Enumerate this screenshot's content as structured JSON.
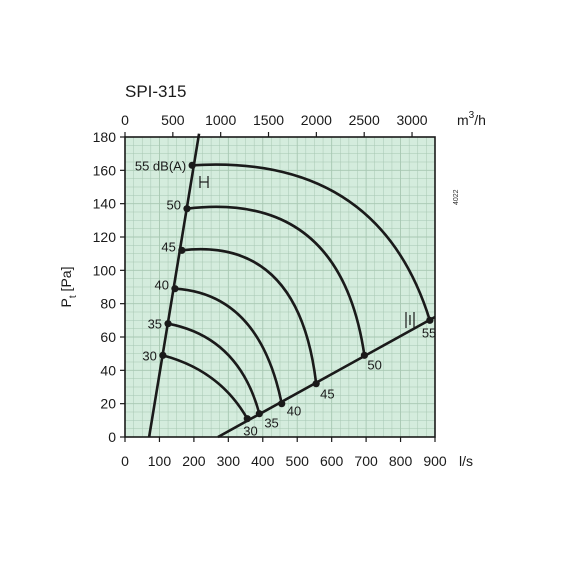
{
  "chart_data": {
    "type": "line",
    "title": "SPI-315",
    "code": "4022",
    "x_label": "l/s",
    "x2_label_main": "m",
    "x2_label_sup": "3",
    "x2_label_tail": "/h",
    "y_label_main": "P",
    "y_label_sub": "t",
    "y_label_tail": " [Pa]",
    "xlim": [
      0,
      900
    ],
    "ylim": [
      0,
      180
    ],
    "x2lim": [
      0,
      3240
    ],
    "x_ticks": [
      0,
      100,
      200,
      300,
      400,
      500,
      600,
      700,
      800,
      900
    ],
    "y_ticks": [
      0,
      20,
      40,
      60,
      80,
      100,
      120,
      140,
      160,
      180
    ],
    "x2_ticks": [
      0,
      500,
      1000,
      1500,
      2000,
      2500,
      3000
    ],
    "grid_minor_x": 25,
    "grid_minor_y": 5,
    "plot_background": "#d4ecdd",
    "grid_color": "#a7c7b2",
    "line_color": "#1a1a1a",
    "sound_curves": [
      {
        "label": "30",
        "start": [
          110,
          49
        ],
        "end": [
          355,
          11
        ],
        "control": [
          275,
          40
        ]
      },
      {
        "label": "35",
        "start": [
          125,
          68
        ],
        "end": [
          390,
          14
        ],
        "control": [
          330,
          60
        ]
      },
      {
        "label": "40",
        "start": [
          145,
          89
        ],
        "end": [
          455,
          20
        ],
        "control": [
          390,
          86
        ]
      },
      {
        "label": "45",
        "start": [
          165,
          112
        ],
        "end": [
          555,
          32
        ],
        "control": [
          505,
          120
        ]
      },
      {
        "label": "50",
        "start": [
          180,
          137
        ],
        "end": [
          695,
          49
        ],
        "control": [
          625,
          148
        ]
      },
      {
        "label": "55",
        "start": [
          195,
          163
        ],
        "end": [
          885,
          70
        ],
        "control": [
          735,
          170
        ]
      }
    ],
    "left_boundary": [
      [
        70,
        0
      ],
      [
        215,
        182
      ]
    ],
    "right_boundary": [
      [
        270,
        0
      ],
      [
        900,
        72
      ]
    ],
    "top_label": "55 dB(A)",
    "left_labels": [
      "30",
      "35",
      "40",
      "45",
      "50"
    ],
    "right_labels": [
      "30",
      "35",
      "40",
      "45",
      "50",
      "55"
    ]
  }
}
